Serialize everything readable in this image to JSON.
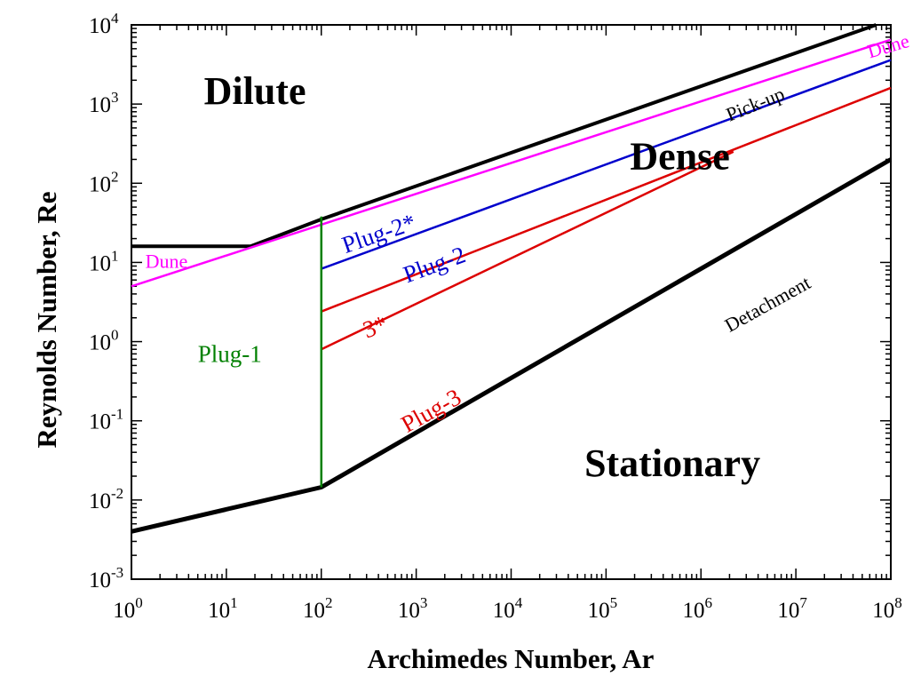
{
  "chart_data": {
    "type": "line",
    "title": "",
    "xlabel": "Archimedes Number, Ar",
    "ylabel": "Reynolds Number, Re",
    "xscale": "log",
    "yscale": "log",
    "xlim": [
      1,
      100000000
    ],
    "ylim": [
      0.001,
      10000
    ],
    "grid": false,
    "x_ticks": [
      {
        "base": "10",
        "exp": "0"
      },
      {
        "base": "10",
        "exp": "1"
      },
      {
        "base": "10",
        "exp": "2"
      },
      {
        "base": "10",
        "exp": "3"
      },
      {
        "base": "10",
        "exp": "4"
      },
      {
        "base": "10",
        "exp": "5"
      },
      {
        "base": "10",
        "exp": "6"
      },
      {
        "base": "10",
        "exp": "7"
      },
      {
        "base": "10",
        "exp": "8"
      }
    ],
    "y_ticks": [
      {
        "base": "10",
        "exp": "-3"
      },
      {
        "base": "10",
        "exp": "-2"
      },
      {
        "base": "10",
        "exp": "-1"
      },
      {
        "base": "10",
        "exp": "0"
      },
      {
        "base": "10",
        "exp": "1"
      },
      {
        "base": "10",
        "exp": "2"
      },
      {
        "base": "10",
        "exp": "3"
      },
      {
        "base": "10",
        "exp": "4"
      }
    ],
    "series": [
      {
        "name": "Pick-up",
        "color": "#000000",
        "width": 4,
        "x": [
          1,
          18,
          100,
          70000000
        ],
        "y": [
          16,
          16,
          35,
          10000
        ]
      },
      {
        "name": "Dune",
        "color": "#ff00ff",
        "width": 2.5,
        "x": [
          1,
          100000000
        ],
        "y": [
          5,
          6500
        ]
      },
      {
        "name": "Plug-2*",
        "color": "#0000cc",
        "width": 2.5,
        "x": [
          100,
          100000000
        ],
        "y": [
          8.3,
          3600
        ]
      },
      {
        "name": "3*",
        "color": "#dd0000",
        "width": 2.5,
        "x": [
          100,
          100000000
        ],
        "y": [
          2.4,
          1600
        ]
      },
      {
        "name": "Plug-3",
        "color": "#dd0000",
        "width": 2.5,
        "x": [
          100,
          2200000
        ],
        "y": [
          0.8,
          250
        ]
      },
      {
        "name": "Detachment",
        "color": "#000000",
        "width": 5,
        "x": [
          1,
          100,
          100000000
        ],
        "y": [
          0.004,
          0.0145,
          200
        ]
      },
      {
        "name": "Plug-1",
        "color": "#008000",
        "width": 2.5,
        "x": [
          100,
          100
        ],
        "y": [
          0.0145,
          38
        ]
      }
    ],
    "annotations": {
      "regions": [
        {
          "text": "Dilute",
          "x": 20,
          "y": 1000
        },
        {
          "text": "Dense",
          "x": 600000,
          "y": 150
        },
        {
          "text": "Stationary",
          "x": 500000,
          "y": 0.02
        }
      ],
      "labels": [
        {
          "text": "Pick-up",
          "x": 2000000,
          "y": 600,
          "color": "#000000",
          "rotate": -22
        },
        {
          "text": "Dune",
          "x": 60000000,
          "y": 3800,
          "color": "#ff00ff",
          "rotate": -16
        },
        {
          "text": "Dune",
          "x": 1.4,
          "y": 8.5,
          "color": "#ff00ff",
          "rotate": 0
        },
        {
          "text": "Plug-2*",
          "x": 180,
          "y": 13,
          "color": "#0000cc",
          "rotate": -19
        },
        {
          "text": "Plug-2",
          "x": 800,
          "y": 5.5,
          "color": "#0000cc",
          "rotate": -20
        },
        {
          "text": "3*",
          "x": 300,
          "y": 1.1,
          "color": "#dd0000",
          "rotate": -20
        },
        {
          "text": "Plug-3",
          "x": 800,
          "y": 0.07,
          "color": "#dd0000",
          "rotate": -29
        },
        {
          "text": "Plug-1",
          "x": 5,
          "y": 0.55,
          "color": "#008000",
          "rotate": 0
        },
        {
          "text": "Detachment",
          "x": 2000000,
          "y": 1.3,
          "color": "#000000",
          "rotate": -29
        }
      ]
    }
  }
}
